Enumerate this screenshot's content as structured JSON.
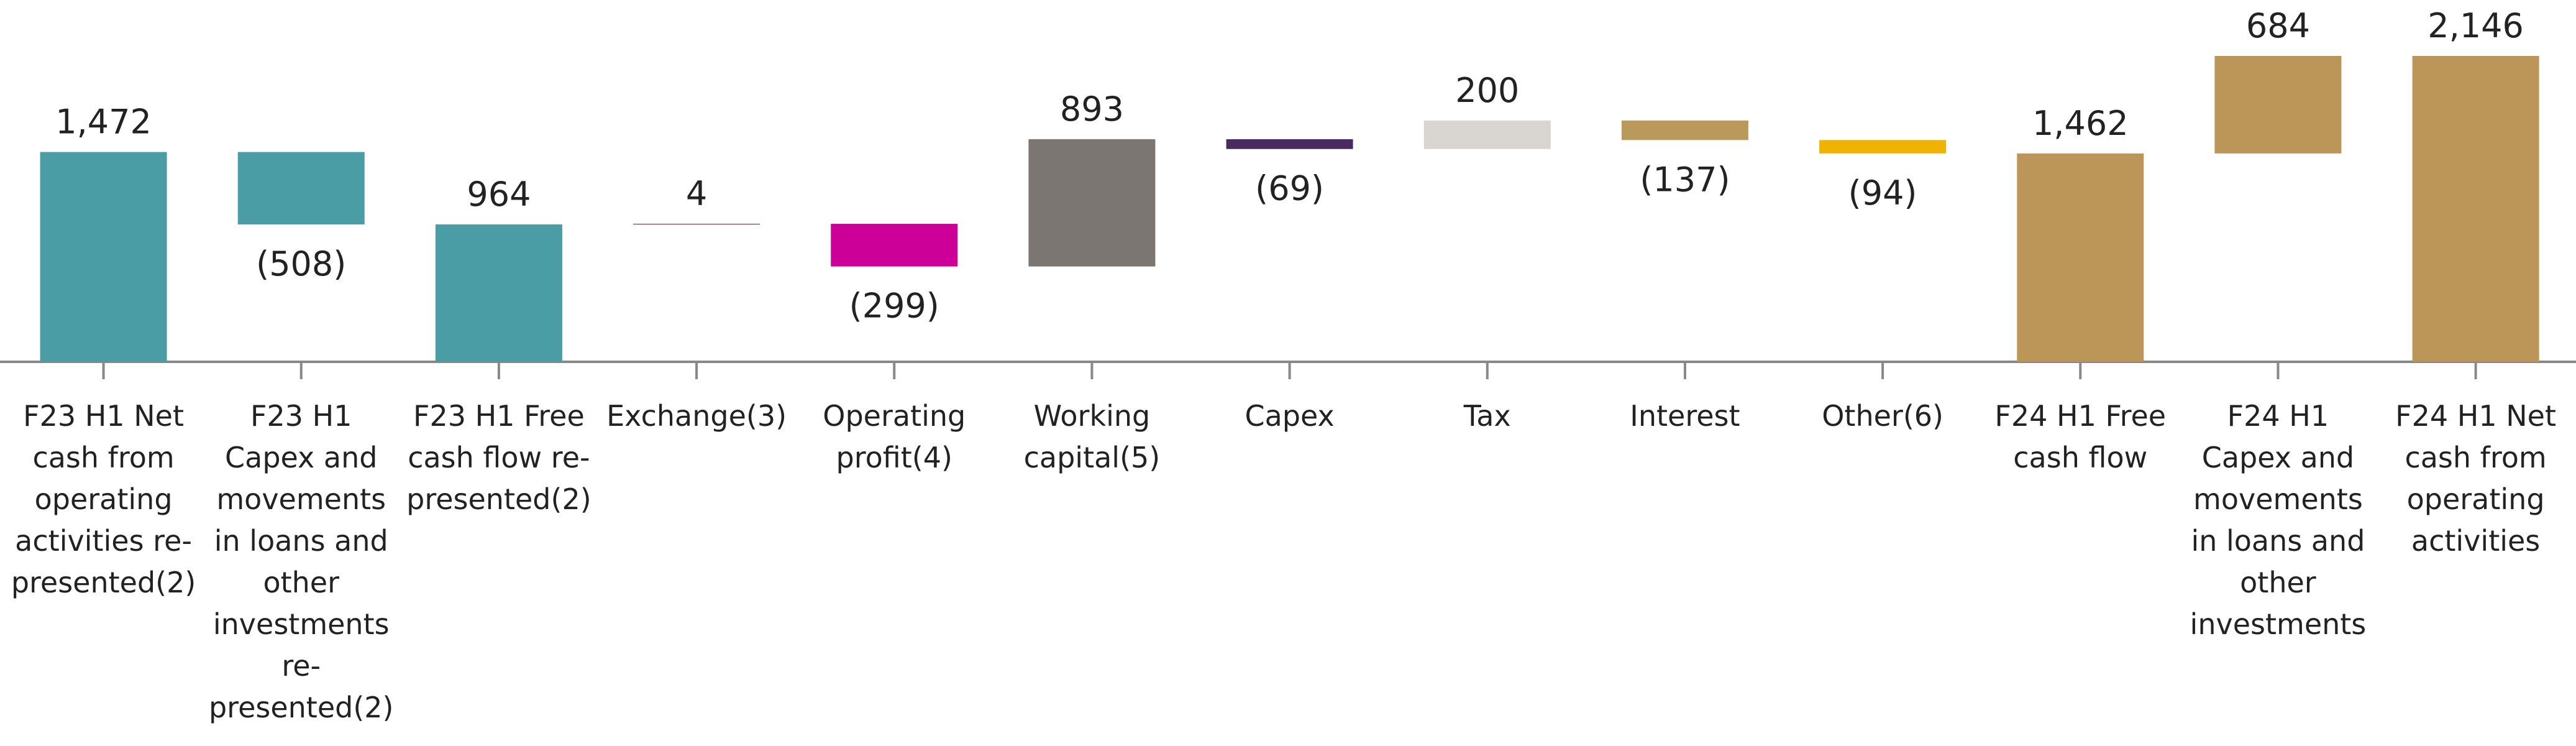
{
  "chart_data": {
    "type": "waterfall",
    "categories": [
      "F23 H1 Net cash from operating activities re-presented(2)",
      "F23 H1 Capex and movements in loans and other investments re-presented(2)",
      "F23 H1 Free cash flow re-presented(2)",
      "Exchange(3)",
      "Operating profit(4)",
      "Working capital(5)",
      "Capex",
      "Tax",
      "Interest",
      "Other(6)",
      "F24 H1 Free cash flow",
      "F24 H1 Capex and movements in loans and other investments",
      "F24 H1 Net cash from operating activities"
    ],
    "values": [
      1472,
      -508,
      964,
      4,
      -299,
      893,
      -69,
      200,
      -137,
      -94,
      1462,
      684,
      2146
    ],
    "value_labels": [
      "1,472",
      "(508)",
      "964",
      "4",
      "(299)",
      "893",
      "(69)",
      "200",
      "(137)",
      "(94)",
      "1,462",
      "684",
      "2,146"
    ],
    "measure": [
      "absolute",
      "relative",
      "absolute",
      "relative",
      "relative",
      "relative",
      "relative",
      "relative",
      "relative",
      "relative",
      "absolute",
      "relative",
      "absolute"
    ],
    "colors": [
      "#4a9ca5",
      "#4a9ca5",
      "#4a9ca5",
      "#761040",
      "#cc0099",
      "#7b7672",
      "#4b2a62",
      "#d9d5d0",
      "#b99a5b",
      "#f0b400",
      "#bb9658",
      "#bb9658",
      "#bb9658"
    ]
  }
}
